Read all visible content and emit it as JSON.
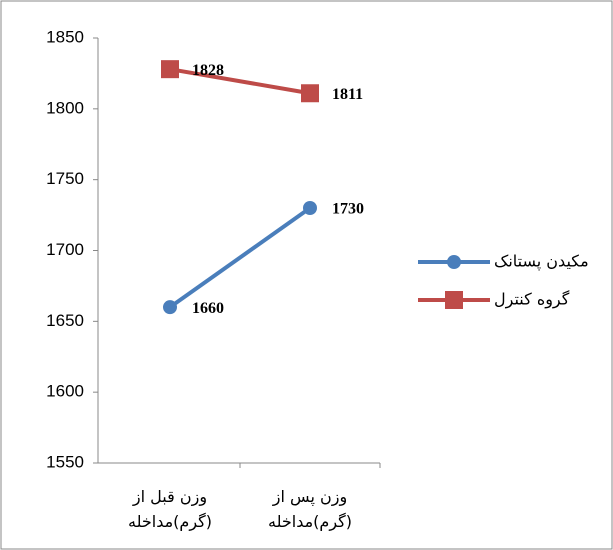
{
  "chart_data": {
    "type": "line",
    "categories": [
      "وزن قبل از (گرم)مداخله",
      "وزن پس از (گرم)مداخله"
    ],
    "series": [
      {
        "name": "مکیدن پستانک",
        "color": "#4a7ebb",
        "marker": "circle",
        "values": [
          1660,
          1730
        ]
      },
      {
        "name": "گروه کنترل",
        "color": "#be4b48",
        "marker": "square",
        "values": [
          1828,
          1811
        ]
      }
    ],
    "ylim": [
      1550,
      1850
    ],
    "yticks": [
      1550,
      1600,
      1650,
      1700,
      1750,
      1800,
      1850
    ],
    "grid": false,
    "legend": "right"
  }
}
